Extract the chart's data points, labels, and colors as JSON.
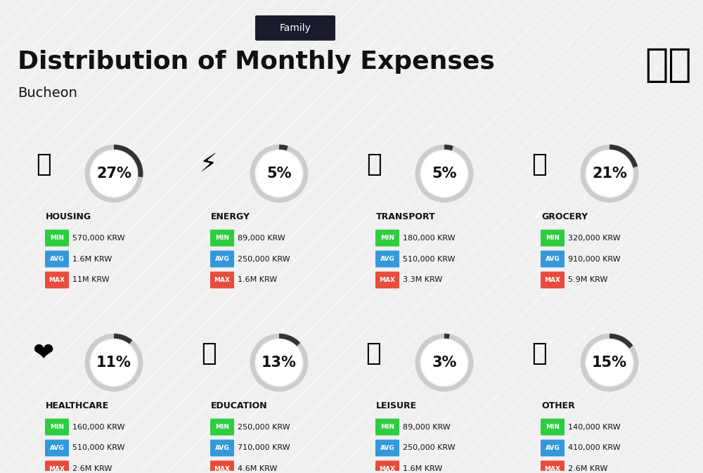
{
  "title": "Distribution of Monthly Expenses",
  "subtitle": "Bucheon",
  "family_label": "Family",
  "bg_color": "#f0f0f0",
  "categories": [
    {
      "name": "HOUSING",
      "pct": 27,
      "min": "570,000 KRW",
      "avg": "1.6M KRW",
      "max": "11M KRW",
      "row": 0,
      "col": 0
    },
    {
      "name": "ENERGY",
      "pct": 5,
      "min": "89,000 KRW",
      "avg": "250,000 KRW",
      "max": "1.6M KRW",
      "row": 0,
      "col": 1
    },
    {
      "name": "TRANSPORT",
      "pct": 5,
      "min": "180,000 KRW",
      "avg": "510,000 KRW",
      "max": "3.3M KRW",
      "row": 0,
      "col": 2
    },
    {
      "name": "GROCERY",
      "pct": 21,
      "min": "320,000 KRW",
      "avg": "910,000 KRW",
      "max": "5.9M KRW",
      "row": 0,
      "col": 3
    },
    {
      "name": "HEALTHCARE",
      "pct": 11,
      "min": "160,000 KRW",
      "avg": "510,000 KRW",
      "max": "2.6M KRW",
      "row": 1,
      "col": 0
    },
    {
      "name": "EDUCATION",
      "pct": 13,
      "min": "250,000 KRW",
      "avg": "710,000 KRW",
      "max": "4.6M KRW",
      "row": 1,
      "col": 1
    },
    {
      "name": "LEISURE",
      "pct": 3,
      "min": "89,000 KRW",
      "avg": "250,000 KRW",
      "max": "1.6M KRW",
      "row": 1,
      "col": 2
    },
    {
      "name": "OTHER",
      "pct": 15,
      "min": "140,000 KRW",
      "avg": "410,000 KRW",
      "max": "2.6M KRW",
      "row": 1,
      "col": 3
    }
  ],
  "min_color": "#2ecc40",
  "avg_color": "#3498db",
  "max_color": "#e74c3c",
  "arc_color": "#333333",
  "arc_bg_color": "#cccccc",
  "label_color": "#111111",
  "pct_fontsize": 15,
  "name_fontsize": 9,
  "val_fontsize": 8
}
